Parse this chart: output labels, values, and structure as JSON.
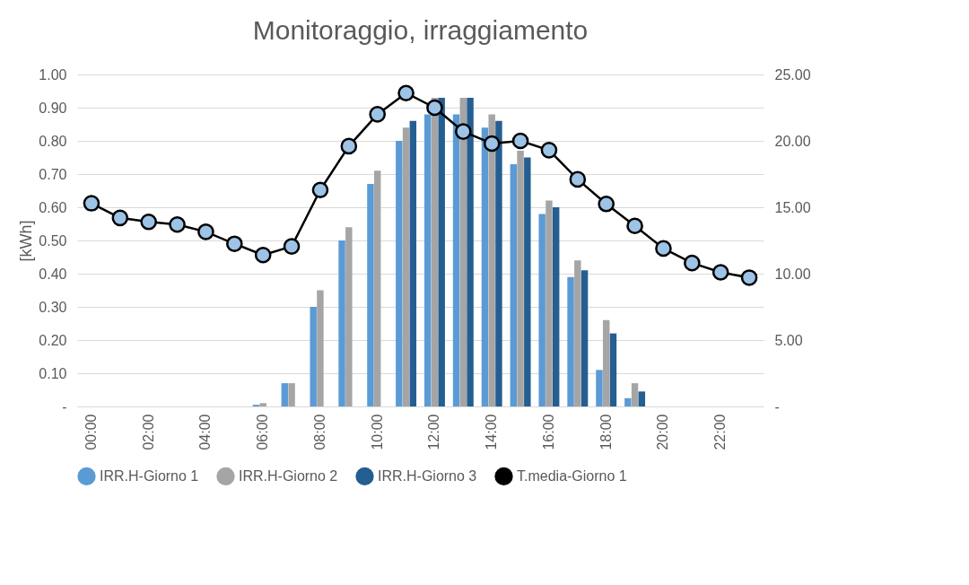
{
  "chart_data": {
    "type": "bar",
    "title": "Monitoraggio, irraggiamento",
    "ylabel": "[kWh]",
    "categories": [
      "00:00",
      null,
      "02:00",
      null,
      "04:00",
      null,
      "06:00",
      null,
      "08:00",
      null,
      "10:00",
      null,
      "12:00",
      null,
      "14:00",
      null,
      "16:00",
      null,
      "18:00",
      null,
      "20:00",
      null,
      "22:00",
      null
    ],
    "series": [
      {
        "name": "IRR.H-Giorno 1",
        "color": "#5b9bd5",
        "values": [
          0,
          0,
          0,
          0,
          0,
          0,
          0.005,
          0.07,
          0.3,
          0.5,
          0.67,
          0.8,
          0.88,
          0.88,
          0.84,
          0.73,
          0.58,
          0.39,
          0.11,
          0.025,
          0,
          0,
          0,
          0
        ]
      },
      {
        "name": "IRR.H-Giorno 2",
        "color": "#a5a5a5",
        "values": [
          0,
          0,
          0,
          0,
          0,
          0,
          0.01,
          0.07,
          0.35,
          0.54,
          0.71,
          0.84,
          0.93,
          0.93,
          0.88,
          0.77,
          0.62,
          0.44,
          0.26,
          0.07,
          0,
          0,
          0,
          0
        ]
      },
      {
        "name": "IRR.H-Giorno 3",
        "color": "#255e91",
        "values": [
          null,
          null,
          null,
          null,
          null,
          null,
          null,
          null,
          null,
          null,
          null,
          0.86,
          0.93,
          0.93,
          0.86,
          0.75,
          0.6,
          0.41,
          0.22,
          0.045,
          0,
          0,
          0,
          0
        ]
      },
      {
        "name": "T.media-Giorno 1",
        "type": "line",
        "axis": "y2",
        "color": "#000000",
        "values": [
          15.3,
          14.2,
          13.9,
          13.7,
          13.15,
          12.25,
          11.4,
          12.05,
          16.3,
          19.6,
          22.0,
          23.6,
          22.5,
          20.7,
          19.8,
          20.0,
          19.3,
          17.1,
          15.25,
          13.6,
          11.9,
          10.8,
          10.1,
          9.7
        ]
      }
    ],
    "ylim": [
      0,
      1
    ],
    "yticks": [
      {
        "value": 0,
        "label": "-"
      },
      {
        "value": 0.1,
        "label": "0.10"
      },
      {
        "value": 0.2,
        "label": "0.20"
      },
      {
        "value": 0.3,
        "label": "0.30"
      },
      {
        "value": 0.4,
        "label": "0.40"
      },
      {
        "value": 0.5,
        "label": "0.50"
      },
      {
        "value": 0.6,
        "label": "0.60"
      },
      {
        "value": 0.7,
        "label": "0.70"
      },
      {
        "value": 0.8,
        "label": "0.80"
      },
      {
        "value": 0.9,
        "label": "0.90"
      },
      {
        "value": 1,
        "label": "1.00"
      }
    ],
    "y2lim": [
      0,
      25
    ],
    "y2ticks": [
      {
        "value": 0,
        "label": "-"
      },
      {
        "value": 5,
        "label": "5.00"
      },
      {
        "value": 10,
        "label": "10.00"
      },
      {
        "value": 15,
        "label": "15.00"
      },
      {
        "value": 20,
        "label": "20.00"
      },
      {
        "value": 25,
        "label": "25.00"
      }
    ],
    "grid": "y",
    "legend": "bottom",
    "marker": "circle"
  }
}
